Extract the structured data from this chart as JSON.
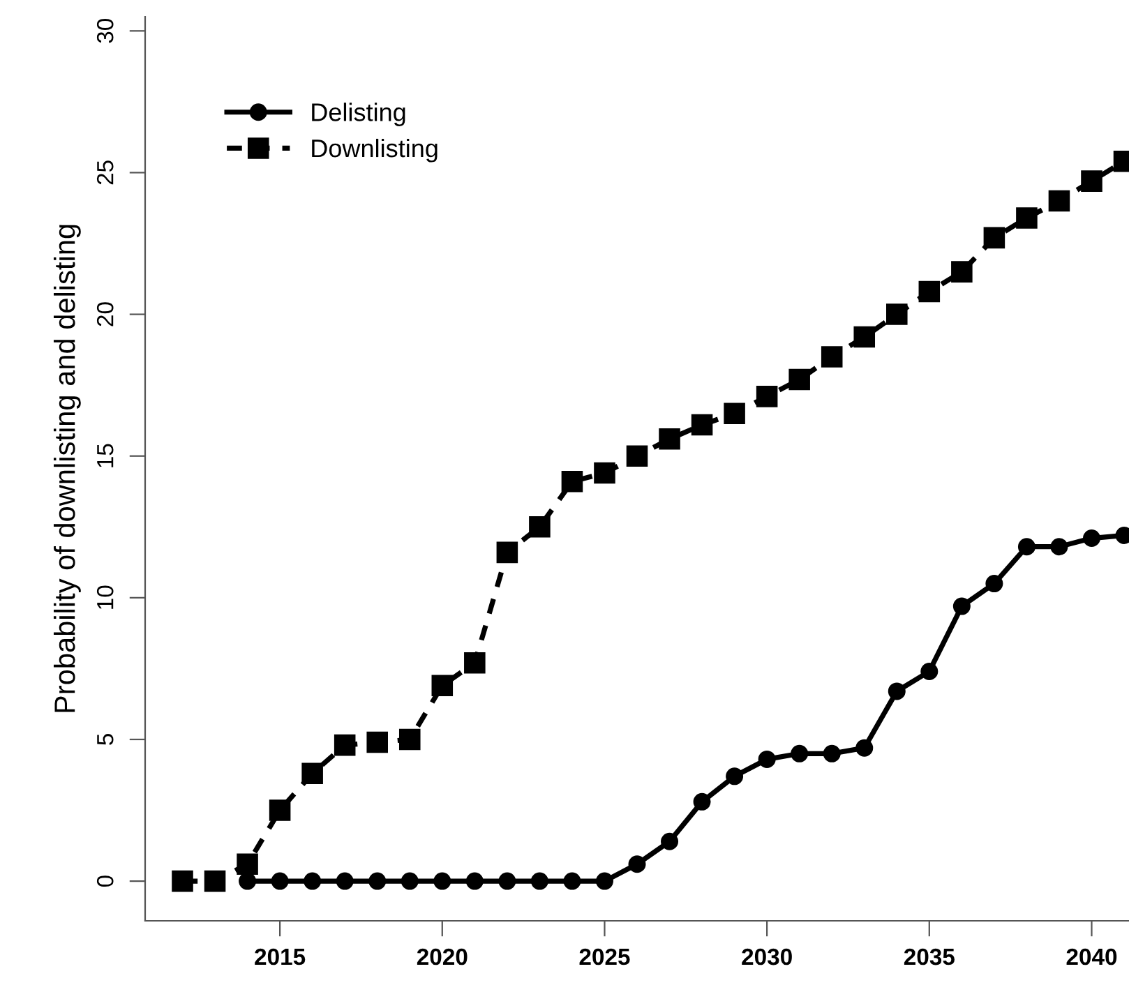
{
  "chart_data": {
    "type": "line",
    "ylabel": "Probability of downlisting and delisting",
    "x": [
      2012,
      2013,
      2014,
      2015,
      2016,
      2017,
      2018,
      2019,
      2020,
      2021,
      2022,
      2023,
      2024,
      2025,
      2026,
      2027,
      2028,
      2029,
      2030,
      2031,
      2032,
      2033,
      2034,
      2035,
      2036,
      2037,
      2038,
      2039,
      2040,
      2041
    ],
    "series": [
      {
        "name": "Delisting",
        "color": "#000000",
        "marker": "circle",
        "line_style": "solid",
        "values": [
          null,
          null,
          0,
          0,
          0,
          0,
          0,
          0,
          0,
          0,
          0,
          0,
          0,
          0,
          0.6,
          1.4,
          2.8,
          3.7,
          4.3,
          4.5,
          4.5,
          4.7,
          6.7,
          7.4,
          9.7,
          10.5,
          11.8,
          11.8,
          12.1,
          12.2
        ]
      },
      {
        "name": "Downlisting",
        "color": "#000000",
        "marker": "square",
        "line_style": "dashed",
        "values": [
          0,
          0,
          0.6,
          2.5,
          3.8,
          4.8,
          4.9,
          5.0,
          6.9,
          7.7,
          11.6,
          12.5,
          14.1,
          14.4,
          15.0,
          15.6,
          16.1,
          16.5,
          17.1,
          17.7,
          18.5,
          19.2,
          20.0,
          20.8,
          21.5,
          22.7,
          23.4,
          24.0,
          24.7,
          25.4
        ]
      }
    ],
    "xlim": [
      2010.85,
      2041.15
    ],
    "ylim": [
      -1.4,
      30.5
    ],
    "xticks": [
      2015,
      2020,
      2025,
      2030,
      2035,
      2040
    ],
    "yticks": [
      0,
      5,
      10,
      15,
      20,
      25,
      30
    ],
    "grid": false,
    "legend": "top left"
  }
}
